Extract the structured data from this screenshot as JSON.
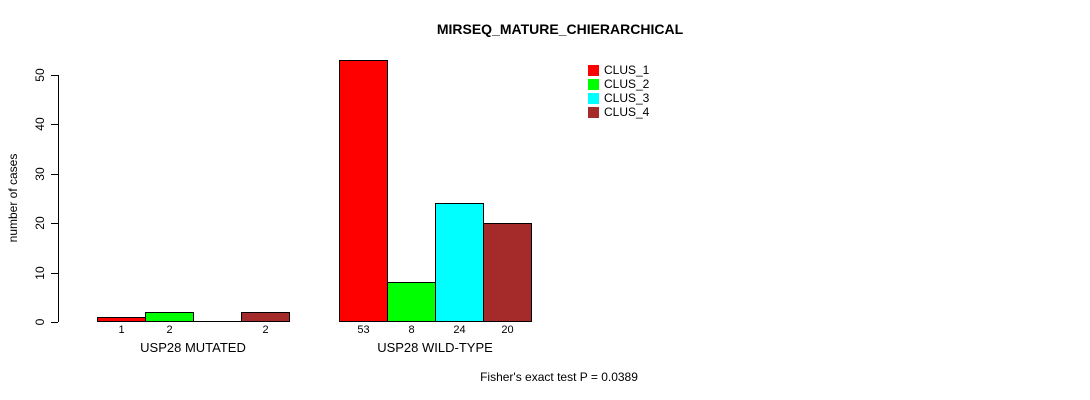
{
  "title": "MIRSEQ_MATURE_CHIERARCHICAL",
  "annotation": "Fisher's exact test P = 0.0389",
  "chart_data": {
    "type": "bar",
    "title": "MIRSEQ_MATURE_CHIERARCHICAL",
    "ylabel": "number of cases",
    "xlabel": "",
    "ylim": [
      0,
      53
    ],
    "yticks": [
      "0",
      "10",
      "20",
      "30",
      "40",
      "50"
    ],
    "grid": false,
    "legend_position": "top-right",
    "bar_border_color": "#000000",
    "categories": [
      "USP28 MUTATED",
      "USP28 WILD-TYPE"
    ],
    "series": [
      {
        "name": "CLUS_1",
        "color": "#FF0000",
        "values": [
          1,
          53
        ]
      },
      {
        "name": "CLUS_2",
        "color": "#00FF00",
        "values": [
          2,
          8
        ]
      },
      {
        "name": "CLUS_3",
        "color": "#00FFFF",
        "values": [
          0,
          24
        ]
      },
      {
        "name": "CLUS_4",
        "color": "#A52A2A",
        "values": [
          2,
          20
        ]
      }
    ],
    "bar_value_labels": [
      [
        "1",
        "2",
        "",
        "2"
      ],
      [
        "53",
        "8",
        "24",
        "20"
      ]
    ]
  }
}
